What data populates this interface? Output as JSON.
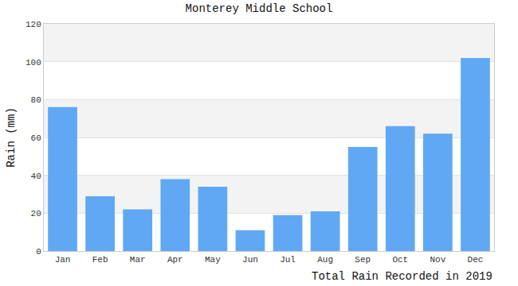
{
  "chart_data": {
    "type": "bar",
    "title": "Monterey Middle School",
    "xlabel": "Total Rain Recorded in 2019",
    "ylabel": "Rain (mm)",
    "categories": [
      "Jan",
      "Feb",
      "Mar",
      "Apr",
      "May",
      "Jun",
      "Jul",
      "Aug",
      "Sep",
      "Oct",
      "Nov",
      "Dec"
    ],
    "values": [
      76,
      29,
      22,
      38,
      34,
      11,
      19,
      21,
      55,
      66,
      62,
      102
    ],
    "color": "#60a8f4",
    "ylim": [
      0,
      120
    ],
    "yticks": [
      0,
      20,
      40,
      60,
      80,
      100,
      120
    ],
    "grid": true
  }
}
